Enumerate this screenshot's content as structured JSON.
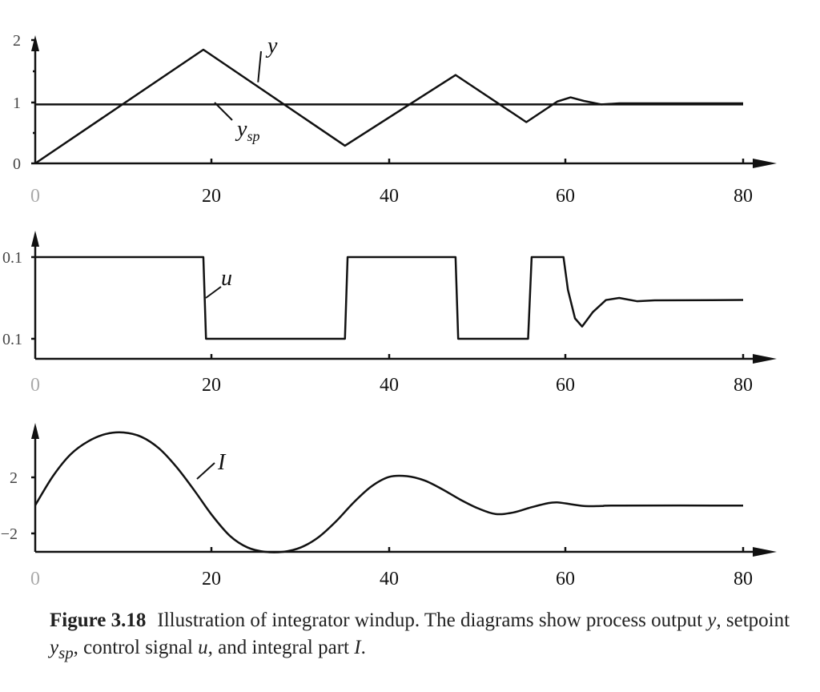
{
  "chart_data": [
    {
      "type": "line",
      "panel": "top",
      "xlim": [
        0,
        80
      ],
      "ylim": [
        0,
        2
      ],
      "x_ticks": [
        "0",
        "20",
        "40",
        "60",
        "80"
      ],
      "y_ticks": [
        "0",
        "1",
        "2"
      ],
      "series": [
        {
          "name": "y",
          "x": [
            0,
            19,
            35,
            47.5,
            55.5,
            59,
            60.5,
            62,
            64,
            66,
            80
          ],
          "y": [
            0,
            1.93,
            0.3,
            1.5,
            0.7,
            1.05,
            1.12,
            1.06,
            1.0,
            1.02,
            1.02
          ]
        },
        {
          "name": "y_sp",
          "x": [
            0,
            80
          ],
          "y": [
            1,
            1
          ]
        }
      ],
      "annotations": [
        {
          "text": "y",
          "sub": "",
          "target_x": 25,
          "target_y": 1.35
        },
        {
          "text": "y",
          "sub": "sp",
          "target_x": 20,
          "target_y": 1.0
        }
      ]
    },
    {
      "type": "line",
      "panel": "middle",
      "xlim": [
        0,
        80
      ],
      "ylim": [
        -0.13,
        0.13
      ],
      "x_ticks": [
        "0",
        "20",
        "40",
        "60",
        "80"
      ],
      "y_ticks": [
        {
          "value": 0.1,
          "label": "0.1"
        },
        {
          "value": -0.1,
          "label": "0.1"
        }
      ],
      "series": [
        {
          "name": "u",
          "x": [
            0,
            19,
            19.3,
            35,
            35.3,
            47.5,
            47.8,
            55.7,
            56.1,
            59.7,
            60.2,
            61,
            61.8,
            63,
            64.5,
            66,
            68,
            70,
            80
          ],
          "y": [
            0.1,
            0.1,
            -0.1,
            -0.1,
            0.1,
            0.1,
            -0.1,
            -0.1,
            0.1,
            0.1,
            0.02,
            -0.05,
            -0.07,
            -0.035,
            -0.005,
            0.0,
            -0.008,
            -0.006,
            -0.005
          ]
        }
      ],
      "annotations": [
        {
          "text": "u",
          "sub": "",
          "target_x": 19.2,
          "target_y": 0.04
        }
      ]
    },
    {
      "type": "line",
      "panel": "bottom",
      "xlim": [
        0,
        80
      ],
      "ylim": [
        -3.25,
        5.5
      ],
      "x_ticks": [
        "0",
        "20",
        "40",
        "60",
        "80"
      ],
      "y_ticks": [
        {
          "value": 2,
          "label": "2"
        },
        {
          "value": -2,
          "label": "−2"
        }
      ],
      "series": [
        {
          "name": "I",
          "x": [
            0,
            2,
            4,
            6,
            8,
            10,
            12,
            14,
            16,
            18,
            20,
            22,
            24,
            26,
            28,
            30,
            32,
            34,
            36,
            38,
            40,
            42,
            44,
            46,
            48,
            50,
            52,
            54,
            56,
            58,
            59,
            60,
            62,
            64,
            66,
            80
          ],
          "y": [
            0,
            2.0,
            3.5,
            4.4,
            4.9,
            5.0,
            4.7,
            3.9,
            2.6,
            1.0,
            -0.7,
            -2.1,
            -2.9,
            -3.2,
            -3.2,
            -2.9,
            -2.2,
            -1.1,
            0.2,
            1.3,
            1.95,
            2.0,
            1.7,
            1.1,
            0.4,
            -0.2,
            -0.6,
            -0.5,
            -0.15,
            0.15,
            0.2,
            0.12,
            -0.05,
            -0.05,
            -0.02,
            -0.02
          ]
        }
      ],
      "annotations": [
        {
          "text": "I",
          "sub": "",
          "target_x": 18,
          "target_y": 1.3
        }
      ]
    }
  ],
  "caption": {
    "label": "Figure 3.18",
    "text_before_y": "Illustration of integrator windup. The diagrams show process output ",
    "y": "y",
    "text_before_ysp": ", setpoint ",
    "ysp_main": "y",
    "ysp_sub": "sp",
    "text_before_u": ", control signal ",
    "u": "u",
    "text_before_I": ", and integral part ",
    "I": "I",
    "end": "."
  }
}
